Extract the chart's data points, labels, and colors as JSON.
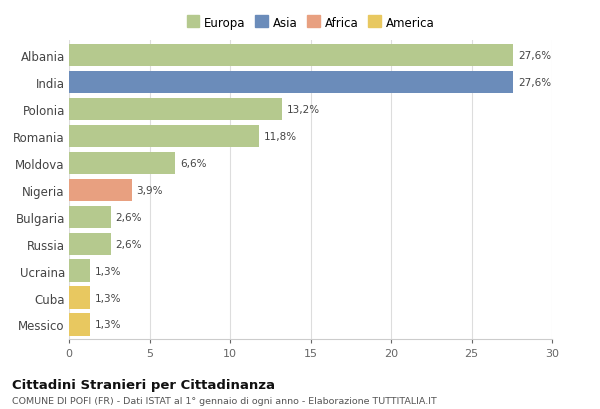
{
  "countries": [
    "Albania",
    "India",
    "Polonia",
    "Romania",
    "Moldova",
    "Nigeria",
    "Bulgaria",
    "Russia",
    "Ucraina",
    "Cuba",
    "Messico"
  ],
  "values": [
    27.6,
    27.6,
    13.2,
    11.8,
    6.6,
    3.9,
    2.6,
    2.6,
    1.3,
    1.3,
    1.3
  ],
  "labels": [
    "27,6%",
    "27,6%",
    "13,2%",
    "11,8%",
    "6,6%",
    "3,9%",
    "2,6%",
    "2,6%",
    "1,3%",
    "1,3%",
    "1,3%"
  ],
  "colors": [
    "#b5c98e",
    "#6b8cba",
    "#b5c98e",
    "#b5c98e",
    "#b5c98e",
    "#e8a080",
    "#b5c98e",
    "#b5c98e",
    "#b5c98e",
    "#e8c860",
    "#e8c860"
  ],
  "legend_labels": [
    "Europa",
    "Asia",
    "Africa",
    "America"
  ],
  "legend_colors": [
    "#b5c98e",
    "#6b8cba",
    "#e8a080",
    "#e8c860"
  ],
  "xlim": [
    0,
    30
  ],
  "xticks": [
    0,
    5,
    10,
    15,
    20,
    25,
    30
  ],
  "title": "Cittadini Stranieri per Cittadinanza",
  "subtitle": "COMUNE DI POFI (FR) - Dati ISTAT al 1° gennaio di ogni anno - Elaborazione TUTTITALIA.IT",
  "background_color": "#ffffff",
  "grid_color": "#dddddd"
}
